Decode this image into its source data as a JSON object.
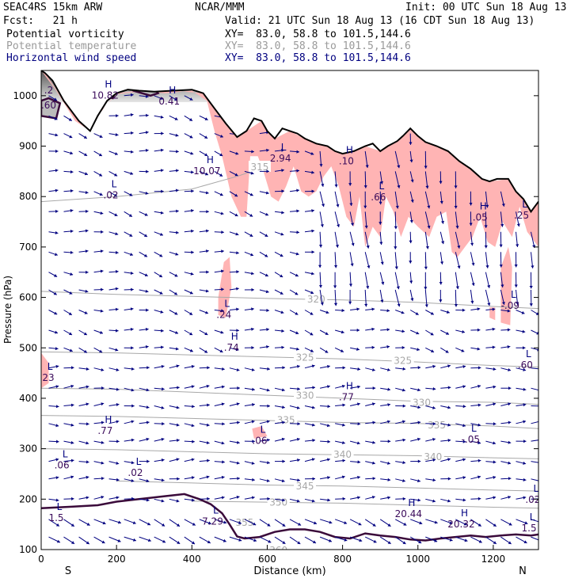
{
  "header": {
    "model": "SEAC4RS 15km ARW",
    "org": "NCAR/MMM",
    "init": "Init: 00 UTC Sun 18 Aug 13",
    "fcst": "Fcst:   21 h",
    "valid": "Valid: 21 UTC Sun 18 Aug 13 (16 CDT Sun 18 Aug 13)",
    "fields": [
      {
        "name": "Potential vorticity",
        "xy": "XY=  83.0, 58.8 to 101.5,144.6",
        "color": "#000000"
      },
      {
        "name": "Potential temperature",
        "xy": "XY=  83.0, 58.8 to 101.5,144.6",
        "color": "#9a9a9a"
      },
      {
        "name": "Horizontal wind speed",
        "xy": "XY=  83.0, 58.8 to 101.5,144.6",
        "color": "#000080"
      }
    ]
  },
  "chart_data": {
    "type": "cross-section",
    "xlabel": "Distance (km)",
    "ylabel": "Pressure (hPa)",
    "xlim": [
      0,
      1320
    ],
    "ylim": [
      1050,
      100
    ],
    "x_ticks": [
      0,
      200,
      400,
      600,
      800,
      1000,
      1200
    ],
    "y_ticks": [
      100,
      200,
      300,
      400,
      500,
      600,
      700,
      800,
      900,
      1000
    ],
    "left_end_label": "S",
    "right_end_label": "N",
    "colors": {
      "axis": "#000000",
      "theta": "#a8a8a8",
      "pv": "#3a0a3a",
      "wind": "#000080",
      "shade": "#ffb4b4",
      "terrain": "#000000"
    },
    "theta_contours": [
      {
        "level": 320,
        "label": "320",
        "points": [
          [
            0,
            612
          ],
          [
            200,
            606
          ],
          [
            400,
            602
          ],
          [
            600,
            598
          ],
          [
            800,
            595
          ],
          [
            1000,
            590
          ],
          [
            1200,
            582
          ],
          [
            1320,
            578
          ]
        ]
      },
      {
        "level": 325,
        "label": "325",
        "points": [
          [
            0,
            492
          ],
          [
            200,
            490
          ],
          [
            400,
            486
          ],
          [
            600,
            482
          ],
          [
            800,
            478
          ],
          [
            1000,
            472
          ],
          [
            1200,
            465
          ],
          [
            1320,
            462
          ]
        ]
      },
      {
        "level": 330,
        "label": "330",
        "points": [
          [
            0,
            420
          ],
          [
            200,
            418
          ],
          [
            400,
            412
          ],
          [
            600,
            406
          ],
          [
            800,
            400
          ],
          [
            1000,
            394
          ],
          [
            1200,
            392
          ],
          [
            1320,
            388
          ]
        ]
      },
      {
        "level": 335,
        "label": "335",
        "points": [
          [
            0,
            366
          ],
          [
            200,
            364
          ],
          [
            400,
            360
          ],
          [
            600,
            356
          ],
          [
            800,
            352
          ],
          [
            1000,
            350
          ],
          [
            1200,
            345
          ],
          [
            1320,
            340
          ]
        ]
      },
      {
        "level": 340,
        "label": "340",
        "points": [
          [
            0,
            300
          ],
          [
            200,
            298
          ],
          [
            400,
            294
          ],
          [
            600,
            290
          ],
          [
            800,
            288
          ],
          [
            1000,
            286
          ],
          [
            1200,
            282
          ],
          [
            1320,
            280
          ]
        ]
      },
      {
        "level": 345,
        "label": "345",
        "points": [
          [
            200,
            236
          ],
          [
            400,
            232
          ],
          [
            600,
            228
          ],
          [
            800,
            226
          ],
          [
            1000,
            222
          ],
          [
            1200,
            218
          ],
          [
            1320,
            216
          ]
        ]
      },
      {
        "level": 350,
        "label": "350",
        "points": [
          [
            400,
            196
          ],
          [
            600,
            194
          ],
          [
            800,
            192
          ],
          [
            1000,
            188
          ],
          [
            1200,
            184
          ],
          [
            1320,
            182
          ]
        ]
      },
      {
        "level": 315,
        "label": "315",
        "points": [
          [
            0,
            790
          ],
          [
            200,
            800
          ],
          [
            400,
            815
          ],
          [
            520,
            840
          ],
          [
            600,
            860
          ]
        ]
      }
    ],
    "theta_labels": [
      {
        "text": "320",
        "x": 730,
        "p": 598
      },
      {
        "text": "325",
        "x": 700,
        "p": 482
      },
      {
        "text": "325",
        "x": 960,
        "p": 476
      },
      {
        "text": "330",
        "x": 700,
        "p": 407
      },
      {
        "text": "330",
        "x": 1010,
        "p": 393
      },
      {
        "text": "335",
        "x": 650,
        "p": 358
      },
      {
        "text": "335",
        "x": 1050,
        "p": 348
      },
      {
        "text": "340",
        "x": 800,
        "p": 290
      },
      {
        "text": "340",
        "x": 1040,
        "p": 285
      },
      {
        "text": "345",
        "x": 700,
        "p": 227
      },
      {
        "text": "350",
        "x": 630,
        "p": 195
      },
      {
        "text": "355",
        "x": 540,
        "p": 155
      },
      {
        "text": "315",
        "x": 580,
        "p": 860
      },
      {
        "text": "360",
        "x": 630,
        "p": 100
      }
    ],
    "extrema": [
      {
        "mark": "L",
        "value": "1.5",
        "x": 40,
        "p": 172
      },
      {
        "mark": "L",
        "value": "7.29",
        "x": 455,
        "p": 165
      },
      {
        "mark": "H",
        "value": "20.44",
        "x": 975,
        "p": 180
      },
      {
        "mark": "H",
        "value": "20.32",
        "x": 1115,
        "p": 160
      },
      {
        "mark": "L",
        "value": "1.5",
        "x": 1295,
        "p": 152
      },
      {
        "mark": "L",
        "value": ".02",
        "x": 1305,
        "p": 208
      },
      {
        "mark": "L",
        "value": ".06",
        "x": 55,
        "p": 277
      },
      {
        "mark": "L",
        "value": ".02",
        "x": 250,
        "p": 262
      },
      {
        "mark": "L",
        "value": ".06",
        "x": 580,
        "p": 325
      },
      {
        "mark": "L",
        "value": "-.05",
        "x": 1140,
        "p": 328
      },
      {
        "mark": "H",
        "value": ".77",
        "x": 170,
        "p": 345
      },
      {
        "mark": "H",
        "value": ".77",
        "x": 810,
        "p": 412
      },
      {
        "mark": "L",
        "value": ".23",
        "x": 15,
        "p": 450
      },
      {
        "mark": "L",
        "value": ".60",
        "x": 1285,
        "p": 475
      },
      {
        "mark": "H",
        "value": ".74",
        "x": 505,
        "p": 510
      },
      {
        "mark": "L",
        "value": ".24",
        "x": 485,
        "p": 575
      },
      {
        "mark": "L",
        "value": "-.09",
        "x": 1245,
        "p": 593
      },
      {
        "mark": "H",
        "value": ".05",
        "x": 1165,
        "p": 768
      },
      {
        "mark": "L",
        "value": ".25",
        "x": 1275,
        "p": 772
      },
      {
        "mark": "L",
        "value": ".66",
        "x": 895,
        "p": 808
      },
      {
        "mark": "L",
        "value": ".02",
        "x": 185,
        "p": 812
      },
      {
        "mark": "H",
        "value": "10.07",
        "x": 440,
        "p": 860
      },
      {
        "mark": "L",
        "value": "2.94",
        "x": 635,
        "p": 885
      },
      {
        "mark": "H",
        "value": ".10",
        "x": 810,
        "p": 880
      },
      {
        "mark": "H",
        "value": "0.41",
        "x": 340,
        "p": 998
      },
      {
        "mark": "H",
        "value": "10.82",
        "x": 170,
        "p": 1010
      },
      {
        "mark": "",
        "value": ".60",
        "x": 20,
        "p": 990
      },
      {
        "mark": "",
        "value": ".2",
        "x": 20,
        "p": 1020
      }
    ],
    "shaded_regions": [
      {
        "points": [
          [
            0,
            420
          ],
          [
            20,
            430
          ],
          [
            20,
            470
          ],
          [
            0,
            490
          ]
        ]
      },
      {
        "points": [
          [
            470,
            565
          ],
          [
            490,
            560
          ],
          [
            505,
            620
          ],
          [
            500,
            680
          ],
          [
            485,
            670
          ],
          [
            470,
            600
          ]
        ]
      },
      {
        "points": [
          [
            565,
            320
          ],
          [
            600,
            325
          ],
          [
            585,
            345
          ],
          [
            560,
            340
          ]
        ]
      },
      {
        "points": [
          [
            1220,
            550
          ],
          [
            1245,
            545
          ],
          [
            1250,
            660
          ],
          [
            1240,
            700
          ],
          [
            1220,
            660
          ]
        ]
      },
      {
        "points": [
          [
            1190,
            560
          ],
          [
            1205,
            555
          ],
          [
            1205,
            580
          ],
          [
            1190,
            580
          ]
        ]
      }
    ],
    "terrain": [
      [
        0,
        1050
      ],
      [
        10,
        1045
      ],
      [
        30,
        1030
      ],
      [
        60,
        990
      ],
      [
        100,
        950
      ],
      [
        130,
        930
      ],
      [
        150,
        960
      ],
      [
        175,
        990
      ],
      [
        200,
        1005
      ],
      [
        230,
        1012
      ],
      [
        260,
        1010
      ],
      [
        300,
        1008
      ],
      [
        350,
        1010
      ],
      [
        400,
        1012
      ],
      [
        430,
        1005
      ],
      [
        460,
        975
      ],
      [
        490,
        945
      ],
      [
        520,
        918
      ],
      [
        545,
        930
      ],
      [
        565,
        955
      ],
      [
        585,
        950
      ],
      [
        600,
        930
      ],
      [
        620,
        915
      ],
      [
        640,
        935
      ],
      [
        660,
        930
      ],
      [
        680,
        925
      ],
      [
        700,
        915
      ],
      [
        730,
        905
      ],
      [
        760,
        900
      ],
      [
        780,
        890
      ],
      [
        800,
        885
      ],
      [
        830,
        890
      ],
      [
        860,
        900
      ],
      [
        880,
        905
      ],
      [
        900,
        890
      ],
      [
        920,
        900
      ],
      [
        945,
        910
      ],
      [
        960,
        920
      ],
      [
        980,
        935
      ],
      [
        1000,
        920
      ],
      [
        1020,
        908
      ],
      [
        1050,
        900
      ],
      [
        1080,
        890
      ],
      [
        1110,
        870
      ],
      [
        1140,
        855
      ],
      [
        1170,
        835
      ],
      [
        1190,
        830
      ],
      [
        1210,
        835
      ],
      [
        1240,
        835
      ],
      [
        1260,
        810
      ],
      [
        1280,
        795
      ],
      [
        1300,
        770
      ],
      [
        1320,
        790
      ]
    ],
    "terrain_shade": [
      [
        0,
        1050
      ],
      [
        40,
        1010
      ],
      [
        90,
        950
      ],
      [
        130,
        930
      ],
      [
        160,
        970
      ],
      [
        200,
        1003
      ],
      [
        260,
        1008
      ],
      [
        330,
        1005
      ],
      [
        400,
        1010
      ],
      [
        440,
        990
      ],
      [
        460,
        930
      ],
      [
        480,
        880
      ],
      [
        505,
        800
      ],
      [
        530,
        760
      ],
      [
        545,
        760
      ],
      [
        555,
        880
      ],
      [
        575,
        880
      ],
      [
        590,
        850
      ],
      [
        610,
        800
      ],
      [
        630,
        790
      ],
      [
        650,
        820
      ],
      [
        670,
        860
      ],
      [
        690,
        810
      ],
      [
        710,
        800
      ],
      [
        730,
        810
      ],
      [
        750,
        840
      ],
      [
        770,
        860
      ],
      [
        790,
        820
      ],
      [
        810,
        760
      ],
      [
        830,
        740
      ],
      [
        845,
        800
      ],
      [
        860,
        700
      ],
      [
        880,
        740
      ],
      [
        900,
        720
      ],
      [
        915,
        800
      ],
      [
        935,
        770
      ],
      [
        955,
        720
      ],
      [
        975,
        760
      ],
      [
        1000,
        740
      ],
      [
        1030,
        720
      ],
      [
        1050,
        760
      ],
      [
        1075,
        770
      ],
      [
        1090,
        690
      ],
      [
        1105,
        680
      ],
      [
        1125,
        700
      ],
      [
        1145,
        720
      ],
      [
        1165,
        760
      ],
      [
        1185,
        710
      ],
      [
        1205,
        700
      ],
      [
        1225,
        750
      ],
      [
        1250,
        720
      ],
      [
        1270,
        780
      ],
      [
        1290,
        730
      ],
      [
        1320,
        700
      ],
      [
        1320,
        790
      ],
      [
        1300,
        770
      ],
      [
        1280,
        795
      ],
      [
        1260,
        810
      ],
      [
        1240,
        835
      ],
      [
        1190,
        830
      ],
      [
        1140,
        855
      ],
      [
        1080,
        890
      ],
      [
        1020,
        908
      ],
      [
        980,
        935
      ],
      [
        945,
        910
      ],
      [
        900,
        890
      ],
      [
        860,
        900
      ],
      [
        800,
        885
      ],
      [
        760,
        900
      ],
      [
        700,
        915
      ],
      [
        660,
        930
      ],
      [
        620,
        915
      ],
      [
        585,
        950
      ],
      [
        545,
        930
      ],
      [
        520,
        918
      ],
      [
        490,
        945
      ],
      [
        460,
        975
      ],
      [
        430,
        1005
      ],
      [
        350,
        1010
      ],
      [
        260,
        1010
      ],
      [
        200,
        1005
      ],
      [
        150,
        960
      ],
      [
        130,
        930
      ],
      [
        100,
        950
      ],
      [
        60,
        990
      ],
      [
        10,
        1045
      ]
    ],
    "pv_contour_top": [
      [
        0,
        182
      ],
      [
        80,
        185
      ],
      [
        150,
        188
      ],
      [
        200,
        195
      ],
      [
        260,
        200
      ],
      [
        330,
        206
      ],
      [
        380,
        210
      ],
      [
        420,
        200
      ],
      [
        450,
        190
      ],
      [
        480,
        172
      ],
      [
        500,
        150
      ],
      [
        520,
        126
      ],
      [
        540,
        122
      ],
      [
        580,
        125
      ],
      [
        620,
        135
      ],
      [
        660,
        140
      ],
      [
        700,
        140
      ],
      [
        740,
        135
      ],
      [
        780,
        125
      ],
      [
        820,
        122
      ],
      [
        860,
        132
      ],
      [
        900,
        128
      ],
      [
        940,
        125
      ],
      [
        980,
        120
      ],
      [
        1020,
        118
      ],
      [
        1060,
        122
      ],
      [
        1100,
        125
      ],
      [
        1140,
        128
      ],
      [
        1180,
        125
      ],
      [
        1220,
        128
      ],
      [
        1260,
        130
      ],
      [
        1300,
        128
      ],
      [
        1320,
        130
      ]
    ],
    "pv_small_contours": [
      [
        [
          0,
          960
        ],
        [
          40,
          955
        ],
        [
          50,
          985
        ],
        [
          20,
          995
        ],
        [
          0,
          990
        ]
      ],
      [
        [
          160,
          1000
        ],
        [
          190,
          995
        ],
        [
          200,
          1015
        ],
        [
          175,
          1030
        ],
        [
          160,
          1015
        ]
      ],
      [
        [
          245,
          1010
        ],
        [
          290,
          1000
        ],
        [
          310,
          1005
        ],
        [
          290,
          1025
        ],
        [
          250,
          1030
        ]
      ]
    ],
    "wind_rows": [
      125,
      160,
      200,
      240,
      275,
      315,
      350,
      385,
      420,
      460,
      500,
      535,
      575,
      615,
      650,
      690,
      730,
      770,
      810,
      850,
      890,
      925,
      960,
      1000
    ],
    "wind_cols": [
      20,
      60,
      100,
      140,
      180,
      220,
      260,
      300,
      340,
      380,
      420,
      460,
      500,
      540,
      580,
      620,
      660,
      700,
      740,
      780,
      820,
      860,
      900,
      940,
      980,
      1020,
      1060,
      1100,
      1140,
      1180,
      1220,
      1260,
      1300
    ]
  }
}
